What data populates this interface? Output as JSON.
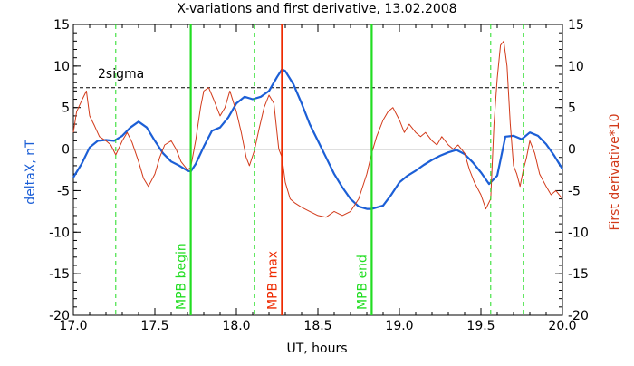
{
  "chart_data": {
    "type": "line",
    "title": "X-variations and first derivative, 13.02.2008",
    "xlabel": "UT, hours",
    "ylabel_left": "deltaX, nT",
    "ylabel_right": "First derivative*10",
    "xlim": [
      17.0,
      20.0
    ],
    "ylim": [
      -20,
      15
    ],
    "xticks": [
      "17.0",
      "17.5",
      "18.0",
      "18.5",
      "19.0",
      "19.5",
      "20.0"
    ],
    "xtick_values": [
      17.0,
      17.5,
      18.0,
      18.5,
      19.0,
      19.5,
      20.0
    ],
    "yticks": [
      "15",
      "10",
      "5",
      "0",
      "-5",
      "-10",
      "-15",
      "-20"
    ],
    "ytick_values": [
      15,
      10,
      5,
      0,
      -5,
      -10,
      -15,
      -20
    ],
    "grid": false,
    "colors": {
      "deltaX": "#1c5fd6",
      "derivative": "#d23a1a",
      "mpb": "#22dd22",
      "mpb_max": "#ee2a00",
      "zero_line": "#000000"
    },
    "threshold": {
      "label": "2sigma",
      "value": 7.4,
      "style": "dashed"
    },
    "zero_line": 0,
    "vertical_markers": [
      {
        "x": 17.72,
        "label": "MPB begin",
        "color": "#22dd22",
        "style": "solid"
      },
      {
        "x": 18.28,
        "label": "MPB max",
        "color": "#ee2a00",
        "style": "solid"
      },
      {
        "x": 18.83,
        "label": "MPB end",
        "color": "#22dd22",
        "style": "solid"
      },
      {
        "x": 17.26,
        "label": "",
        "color": "#22dd22",
        "style": "dashed"
      },
      {
        "x": 18.11,
        "label": "",
        "color": "#22dd22",
        "style": "dashed"
      },
      {
        "x": 19.56,
        "label": "",
        "color": "#22dd22",
        "style": "dashed"
      },
      {
        "x": 19.76,
        "label": "",
        "color": "#22dd22",
        "style": "dashed"
      }
    ],
    "series": [
      {
        "color": "#1c5fd6",
        "x": [
          17.0,
          17.05,
          17.1,
          17.15,
          17.2,
          17.25,
          17.3,
          17.35,
          17.4,
          17.45,
          17.5,
          17.55,
          17.6,
          17.65,
          17.7,
          17.72,
          17.75,
          17.8,
          17.85,
          17.9,
          17.95,
          18.0,
          18.05,
          18.1,
          18.15,
          18.2,
          18.25,
          18.28,
          18.3,
          18.35,
          18.4,
          18.45,
          18.5,
          18.55,
          18.6,
          18.65,
          18.7,
          18.75,
          18.8,
          18.83,
          18.9,
          18.95,
          19.0,
          19.05,
          19.1,
          19.15,
          19.2,
          19.25,
          19.3,
          19.35,
          19.4,
          19.45,
          19.5,
          19.55,
          19.6,
          19.65,
          19.7,
          19.75,
          19.8,
          19.85,
          19.9,
          19.95,
          20.0
        ],
        "y": [
          -3.4,
          -1.8,
          0.2,
          1.0,
          1.1,
          1.0,
          1.6,
          2.6,
          3.3,
          2.6,
          1.0,
          -0.5,
          -1.5,
          -2.0,
          -2.6,
          -2.7,
          -1.8,
          0.3,
          2.2,
          2.6,
          3.8,
          5.5,
          6.3,
          6.0,
          6.3,
          7.0,
          8.7,
          9.6,
          9.4,
          7.8,
          5.5,
          3.0,
          1.0,
          -1.0,
          -3.0,
          -4.6,
          -6.0,
          -6.9,
          -7.2,
          -7.2,
          -6.8,
          -5.5,
          -4.0,
          -3.2,
          -2.6,
          -1.9,
          -1.3,
          -0.8,
          -0.4,
          -0.1,
          -0.6,
          -1.6,
          -2.8,
          -4.2,
          -3.2,
          1.5,
          1.6,
          1.2,
          2.0,
          1.6,
          0.6,
          -0.8,
          -2.4
        ]
      },
      {
        "color": "#d23a1a",
        "x": [
          17.0,
          17.02,
          17.05,
          17.08,
          17.1,
          17.13,
          17.16,
          17.2,
          17.23,
          17.26,
          17.3,
          17.33,
          17.36,
          17.4,
          17.43,
          17.46,
          17.5,
          17.53,
          17.56,
          17.6,
          17.63,
          17.66,
          17.7,
          17.72,
          17.75,
          17.78,
          17.8,
          17.83,
          17.86,
          17.9,
          17.93,
          17.96,
          18.0,
          18.03,
          18.06,
          18.08,
          18.11,
          18.14,
          18.17,
          18.2,
          18.23,
          18.26,
          18.28,
          18.3,
          18.33,
          18.36,
          18.4,
          18.45,
          18.5,
          18.55,
          18.6,
          18.65,
          18.7,
          18.75,
          18.8,
          18.83,
          18.86,
          18.9,
          18.93,
          18.96,
          19.0,
          19.03,
          19.06,
          19.1,
          19.13,
          19.16,
          19.2,
          19.23,
          19.26,
          19.3,
          19.33,
          19.36,
          19.4,
          19.43,
          19.46,
          19.5,
          19.53,
          19.56,
          19.58,
          19.6,
          19.62,
          19.64,
          19.66,
          19.68,
          19.7,
          19.72,
          19.74,
          19.76,
          19.78,
          19.8,
          19.83,
          19.86,
          19.9,
          19.93,
          19.96,
          20.0
        ],
        "y": [
          2.0,
          4.5,
          5.8,
          7.0,
          4.0,
          2.8,
          1.5,
          1.0,
          0.5,
          -0.7,
          1.0,
          2.0,
          0.8,
          -1.5,
          -3.5,
          -4.5,
          -3.0,
          -1.0,
          0.5,
          1.0,
          0.0,
          -1.5,
          -2.5,
          -2.2,
          1.0,
          5.0,
          7.0,
          7.4,
          6.0,
          4.0,
          5.0,
          7.0,
          4.5,
          2.0,
          -1.0,
          -2.0,
          -0.2,
          2.5,
          5.0,
          6.5,
          5.5,
          0.0,
          -1.0,
          -4.0,
          -6.0,
          -6.5,
          -7.0,
          -7.5,
          -8.0,
          -8.2,
          -7.5,
          -8.0,
          -7.5,
          -6.0,
          -3.0,
          -0.5,
          1.5,
          3.5,
          4.5,
          5.0,
          3.5,
          2.0,
          3.0,
          2.0,
          1.5,
          2.0,
          1.0,
          0.5,
          1.5,
          0.5,
          0.0,
          0.5,
          -0.5,
          -2.5,
          -4.0,
          -5.5,
          -7.2,
          -6.0,
          3.0,
          8.5,
          12.5,
          13.0,
          10.0,
          3.0,
          -2.0,
          -3.0,
          -4.5,
          -2.5,
          -1.0,
          1.0,
          -0.5,
          -3.0,
          -4.5,
          -5.5,
          -5.0,
          -6.0
        ]
      }
    ]
  }
}
